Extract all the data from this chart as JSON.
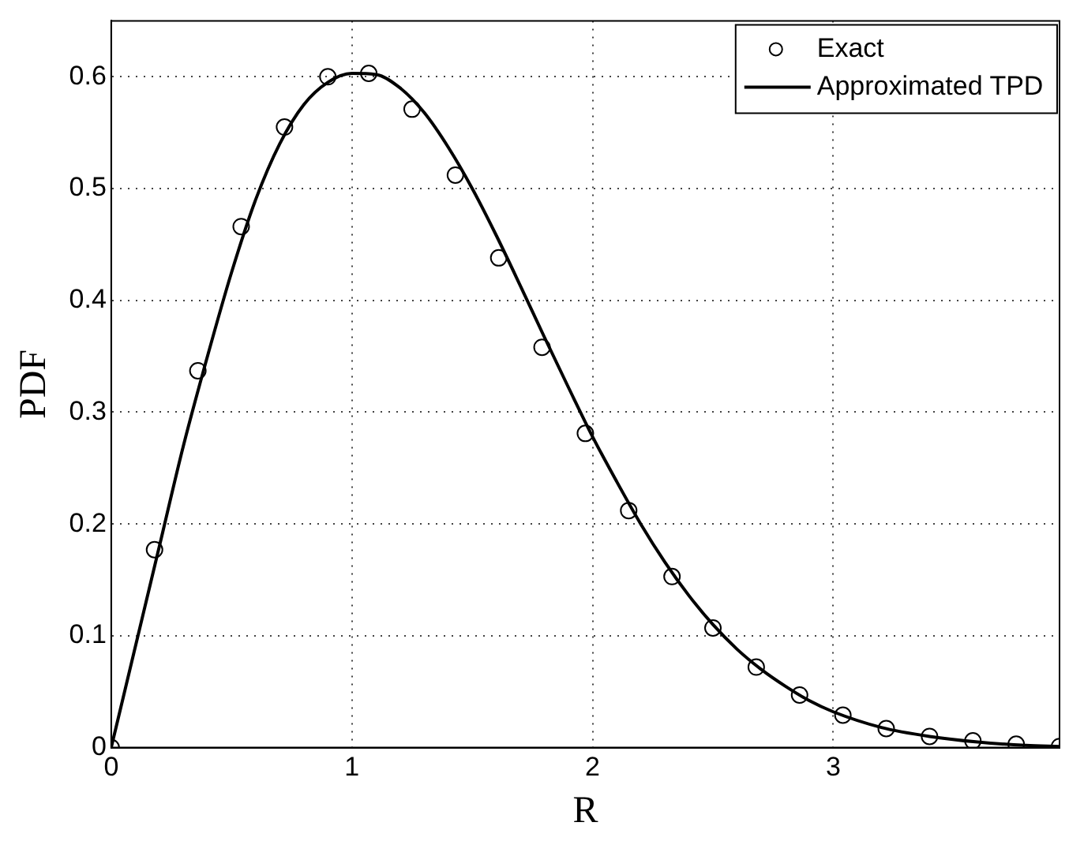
{
  "chart_data": {
    "type": "line",
    "xlabel": "R",
    "ylabel": "PDF",
    "xlim": [
      0,
      3.94
    ],
    "ylim": [
      0,
      0.65
    ],
    "xticks": [
      0,
      1,
      2,
      3
    ],
    "yticks": [
      0,
      0.1,
      0.2,
      0.3,
      0.4,
      0.5,
      0.6
    ],
    "grid": true,
    "legend": "top right",
    "series": [
      {
        "name": "Exact",
        "type": "scatter",
        "marker": "circle",
        "color": "#000000",
        "x": [
          0,
          0.18,
          0.36,
          0.54,
          0.72,
          0.9,
          1.07,
          1.25,
          1.43,
          1.61,
          1.79,
          1.97,
          2.15,
          2.33,
          2.5,
          2.68,
          2.86,
          3.04,
          3.22,
          3.4,
          3.58,
          3.76,
          3.94
        ],
        "values": [
          0,
          0.177,
          0.337,
          0.466,
          0.555,
          0.6,
          0.603,
          0.571,
          0.512,
          0.438,
          0.358,
          0.281,
          0.212,
          0.153,
          0.107,
          0.072,
          0.047,
          0.029,
          0.017,
          0.01,
          0.006,
          0.003,
          0.001
        ]
      },
      {
        "name": "Approximated TPD",
        "marker": "none",
        "line_style": "solid",
        "color": "#000000",
        "x": [
          0,
          0.1,
          0.2,
          0.3,
          0.4,
          0.5,
          0.6,
          0.7,
          0.8,
          0.9,
          1,
          1.1,
          1.2,
          1.3,
          1.4,
          1.5,
          1.6,
          1.7,
          1.8,
          1.9,
          2,
          2.1,
          2.2,
          2.3,
          2.4,
          2.5,
          2.6,
          2.7,
          2.8,
          2.9,
          3,
          3.2,
          3.4,
          3.6,
          3.8,
          3.94
        ],
        "values": [
          0,
          0.09,
          0.18,
          0.27,
          0.35,
          0.425,
          0.49,
          0.54,
          0.575,
          0.595,
          0.603,
          0.602,
          0.59,
          0.568,
          0.537,
          0.5,
          0.458,
          0.413,
          0.367,
          0.322,
          0.278,
          0.238,
          0.2,
          0.166,
          0.136,
          0.11,
          0.088,
          0.07,
          0.055,
          0.042,
          0.032,
          0.018,
          0.01,
          0.005,
          0.002,
          0.001
        ]
      }
    ]
  }
}
